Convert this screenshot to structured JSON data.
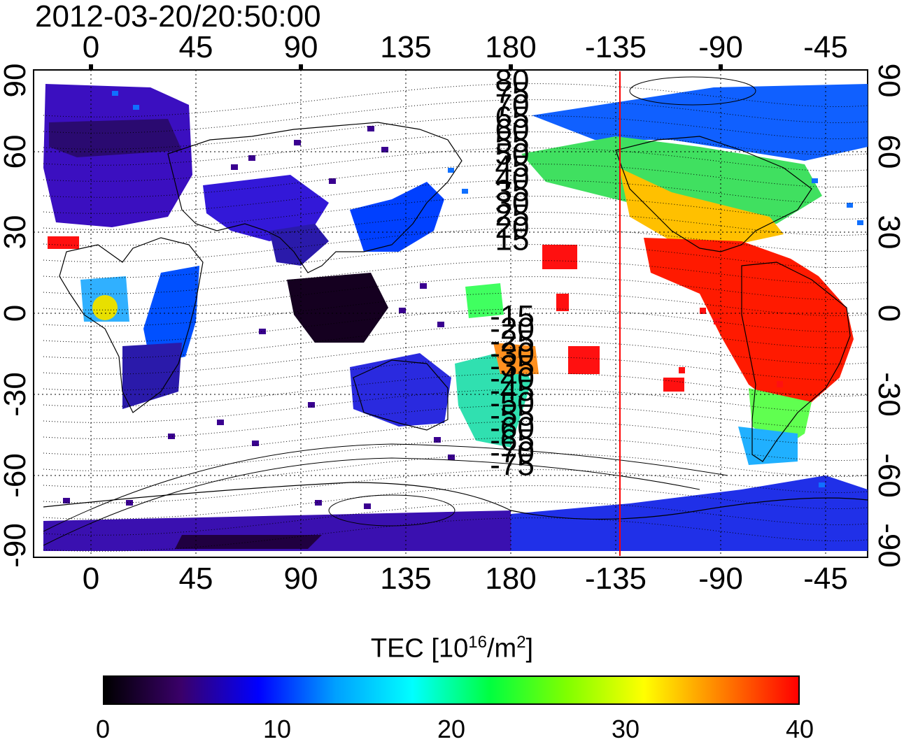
{
  "title": "2012-03-20/20:50:00",
  "map": {
    "x_ticks": [
      "0",
      "45",
      "90",
      "135",
      "180",
      "-135",
      "-90",
      "-45"
    ],
    "y_ticks": [
      "90",
      "60",
      "30",
      "0",
      "-30",
      "-60",
      "-90"
    ],
    "y_ticks_right": [
      "90",
      "60",
      "30",
      "0",
      "-30",
      "-60",
      "-90"
    ],
    "contour_labels_north": [
      "80",
      "75",
      "70",
      "65",
      "60",
      "55",
      "50",
      "45",
      "40",
      "35",
      "30",
      "25",
      "20",
      "15"
    ],
    "contour_labels_south": [
      "-15",
      "-20",
      "-25",
      "-30",
      "-35",
      "-40",
      "-45",
      "-50",
      "-55",
      "-60",
      "-65",
      "-70",
      "-75"
    ],
    "terminator_color": "#ff0000"
  },
  "colorbar": {
    "title_main": "TEC  [10",
    "title_exp": "16",
    "title_unit": "/m",
    "title_unit_exp": "2",
    "title_close": "]",
    "min": 0,
    "max": 40,
    "ticks": [
      "0",
      "10",
      "20",
      "30",
      "40"
    ],
    "colors": [
      "#000000",
      "#3a006a",
      "#0000ff",
      "#00a0ff",
      "#00ffff",
      "#00ff40",
      "#80ff00",
      "#ffff00",
      "#ff8000",
      "#ff0000"
    ]
  }
}
